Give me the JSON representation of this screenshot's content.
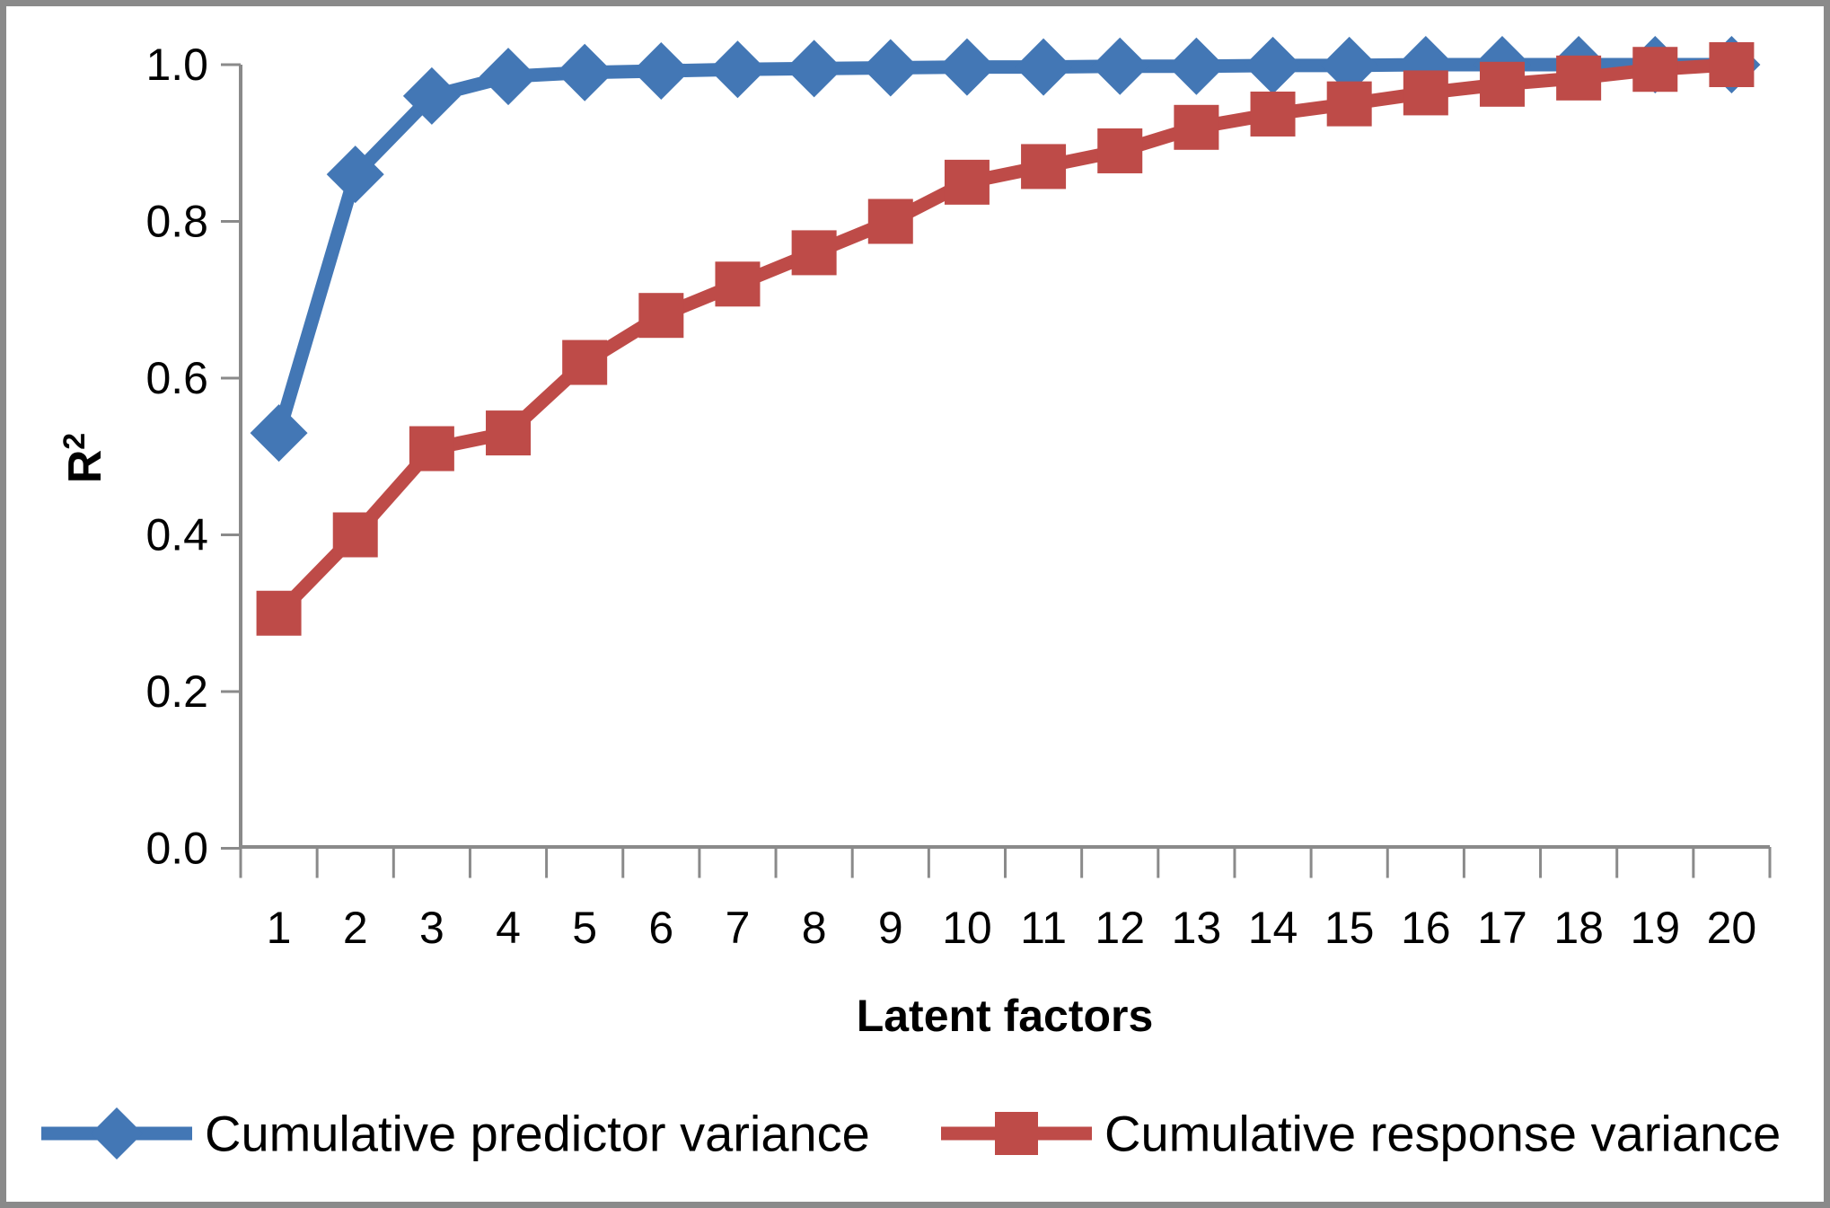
{
  "chart_data": {
    "type": "line",
    "title": "",
    "xlabel": "Latent factors",
    "ylabel": "R",
    "ylabel_superscript": "2",
    "categories": [
      1,
      2,
      3,
      4,
      5,
      6,
      7,
      8,
      9,
      10,
      11,
      12,
      13,
      14,
      15,
      16,
      17,
      18,
      19,
      20
    ],
    "ylim": [
      0.0,
      1.0
    ],
    "yticks": [
      0.0,
      0.2,
      0.4,
      0.6,
      0.8,
      1.0
    ],
    "ytick_labels": [
      "0.0",
      "0.2",
      "0.4",
      "0.6",
      "0.8",
      "1.0"
    ],
    "grid": false,
    "legend_position": "bottom",
    "colors": {
      "axis": "#8a8a8a",
      "text": "#000000",
      "frame_border": "#8a8a8a",
      "background": "#ffffff",
      "predictor_blue": "#4377b5",
      "response_red": "#be4b48"
    },
    "series": [
      {
        "name": "Cumulative predictor variance",
        "marker": "diamond",
        "color": "#4377b5",
        "values": [
          0.53,
          0.86,
          0.96,
          0.985,
          0.99,
          0.992,
          0.994,
          0.995,
          0.996,
          0.997,
          0.997,
          0.998,
          0.998,
          0.999,
          0.999,
          1.0,
          1.0,
          1.0,
          1.0,
          1.0
        ]
      },
      {
        "name": "Cumulative response variance",
        "marker": "square",
        "color": "#be4b48",
        "values": [
          0.3,
          0.4,
          0.51,
          0.53,
          0.62,
          0.68,
          0.72,
          0.76,
          0.8,
          0.85,
          0.87,
          0.89,
          0.92,
          0.937,
          0.95,
          0.964,
          0.975,
          0.983,
          0.994,
          1.0
        ]
      }
    ]
  }
}
